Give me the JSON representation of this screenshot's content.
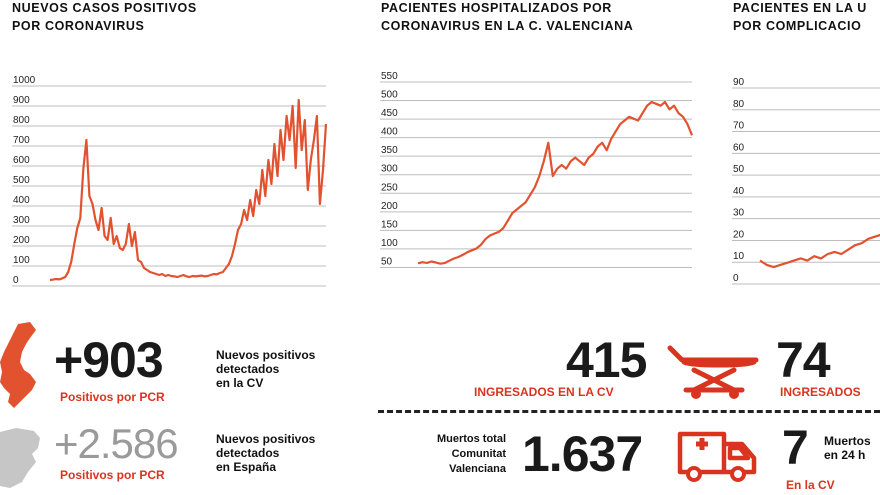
{
  "colors": {
    "accent": "#e2522f",
    "red_text": "#d9341f",
    "grid": "#bdbdbd",
    "gray_map": "#c6c6c6"
  },
  "charts_titles": {
    "c1": [
      "NUEVOS CASOS POSITIVOS",
      "POR CORONAVIRUS"
    ],
    "c2": [
      "PACIENTES HOSPITALIZADOS POR",
      "CORONAVIRUS EN LA C. VALENCIANA"
    ],
    "c3": [
      "PACIENTES EN LA U",
      "POR COMPLICACIO"
    ]
  },
  "chart_data": [
    {
      "type": "line",
      "title": "NUEVOS CASOS POSITIVOS POR CORONAVIRUS",
      "ylim": [
        0,
        1000
      ],
      "yticks": [
        0,
        100,
        200,
        300,
        400,
        500,
        600,
        700,
        800,
        900,
        1000
      ],
      "color": "#e2522f",
      "values": [
        0,
        2,
        5,
        3,
        8,
        15,
        40,
        90,
        180,
        260,
        310,
        560,
        700,
        420,
        380,
        300,
        250,
        360,
        220,
        200,
        310,
        180,
        220,
        160,
        150,
        180,
        280,
        170,
        240,
        100,
        90,
        60,
        50,
        40,
        35,
        30,
        25,
        30,
        20,
        25,
        20,
        18,
        15,
        20,
        25,
        18,
        15,
        20,
        18,
        20,
        22,
        18,
        20,
        25,
        30,
        28,
        35,
        40,
        60,
        80,
        120,
        180,
        250,
        280,
        350,
        300,
        400,
        320,
        450,
        380,
        550,
        420,
        600,
        480,
        680,
        520,
        750,
        600,
        820,
        700,
        870,
        560,
        900,
        650,
        800,
        450,
        600,
        700,
        820,
        380,
        550,
        780
      ]
    },
    {
      "type": "line",
      "title": "PACIENTES HOSPITALIZADOS POR CORONAVIRUS EN LA C. VALENCIANA",
      "ylim": [
        0,
        550
      ],
      "yticks": [
        50,
        100,
        150,
        200,
        250,
        300,
        350,
        400,
        450,
        500,
        550
      ],
      "color": "#e2522f",
      "values": [
        45,
        48,
        46,
        50,
        47,
        44,
        46,
        52,
        58,
        62,
        68,
        75,
        80,
        85,
        95,
        110,
        120,
        125,
        130,
        140,
        160,
        180,
        190,
        200,
        210,
        230,
        250,
        280,
        320,
        370,
        280,
        300,
        310,
        300,
        320,
        330,
        320,
        310,
        330,
        340,
        360,
        370,
        350,
        380,
        400,
        420,
        430,
        440,
        435,
        430,
        450,
        470,
        480,
        475,
        470,
        480,
        460,
        470,
        450,
        440,
        420,
        390
      ]
    },
    {
      "type": "line",
      "title": "PACIENTES EN LA U POR COMPLICACIO",
      "ylim": [
        0,
        90
      ],
      "yticks": [
        0,
        10,
        20,
        30,
        40,
        50,
        60,
        70,
        80,
        90
      ],
      "color": "#e2522f",
      "values": [
        8,
        6,
        5,
        6,
        7,
        8,
        9,
        8,
        10,
        9,
        11,
        12,
        11,
        13,
        15,
        16,
        18,
        19,
        20
      ]
    }
  ],
  "stats": {
    "pcr_cv_value": "+903",
    "pcr_cv_label": "Positivos por PCR",
    "pcr_cv_desc": [
      "Nuevos positivos",
      "detectados",
      "en la CV"
    ],
    "pcr_es_value": "+2.586",
    "pcr_es_label": "Positivos por PCR",
    "pcr_es_desc": [
      "Nuevos positivos",
      "detectados",
      "en España"
    ],
    "hosp_value": "415",
    "hosp_label": "INGRESADOS EN LA CV",
    "uci_value": "74",
    "uci_label": "INGRESADOS",
    "deaths_total_desc": [
      "Muertos total",
      "Comunitat",
      "Valenciana"
    ],
    "deaths_total_value": "1.637",
    "deaths_24h_value": "7",
    "deaths_24h_desc": [
      "Muertos",
      "en 24 h"
    ],
    "deaths_24h_label": "En la CV"
  },
  "icons": {
    "map_cv": "valencia-map-icon",
    "map_es": "spain-map-icon",
    "stretcher": "stretcher-icon",
    "ambulance": "ambulance-icon"
  }
}
